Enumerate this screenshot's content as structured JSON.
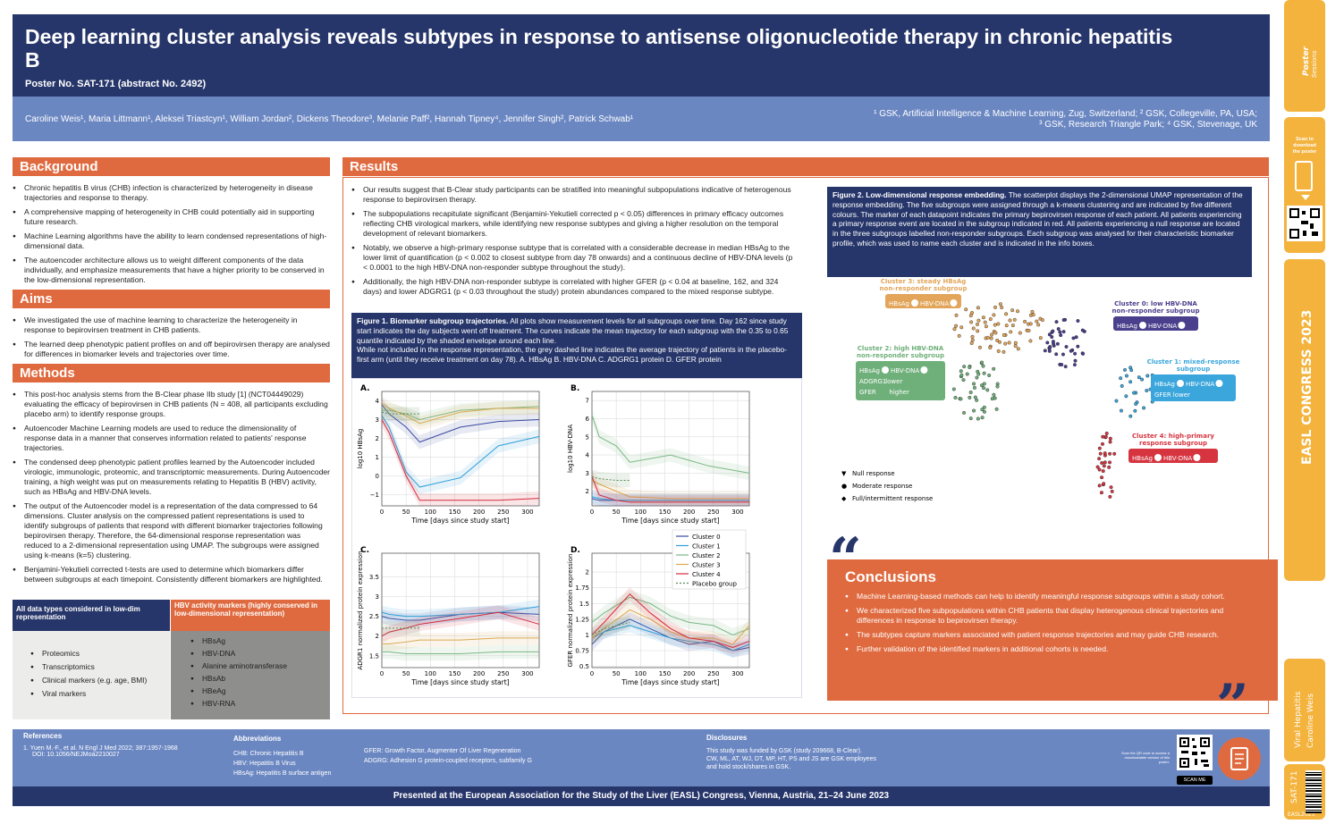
{
  "header": {
    "title": "Deep learning cluster analysis reveals subtypes in response to antisense oligonucleotide therapy in chronic hepatitis B",
    "poster_no": "Poster No. SAT-171 (abstract No. 2492)"
  },
  "authors": {
    "list": "Caroline Weis¹, Maria Littmann¹, Aleksei Triastcyn¹, William Jordan², Dickens Theodore³, Melanie Paff², Hannah Tipney⁴, Jennifer Singh², Patrick Schwab¹",
    "affil1": "¹ GSK, Artificial Intelligence & Machine Learning, Zug, Switzerland; ² GSK, Collegeville, PA, USA;",
    "affil2": "³ GSK, Research Triangle Park; ⁴ GSK, Stevenage, UK"
  },
  "background": {
    "title": "Background",
    "items": [
      "Chronic hepatitis B virus (CHB) infection is characterized by heterogeneity in disease trajectories and response to therapy.",
      "A comprehensive mapping of heterogeneity in CHB could potentially aid in supporting future research.",
      "Machine Learning algorithms have the ability to learn condensed representations of high-dimensional data.",
      "The autoencoder architecture allows us to weight different components of the data individually, and emphasize measurements that have a higher priority to be conserved in the low-dimensional representation."
    ]
  },
  "aims": {
    "title": "Aims",
    "items": [
      "We investigated the use of machine learning to characterize the heterogeneity in response to bepirovirsen treatment in CHB patients.",
      "The learned deep phenotypic patient profiles on and off bepirovirsen therapy are analysed for differences in biomarker levels and trajectories over time."
    ]
  },
  "methods": {
    "title": "Methods",
    "items": [
      "This post-hoc analysis stems from the B-Clear phase IIb study [1] (NCT04449029) evaluating the efficacy of bepirovirsen in CHB patients (N = 408, all participants excluding placebo arm) to identify response groups.",
      "Autoencoder Machine Learning models are used to reduce the dimensionality of response data in a manner that conserves information related to patients' response trajectories.",
      "The condensed deep phenotypic patient profiles learned by the Autoencoder included virologic, immunologic, proteomic, and transcriptomic measurements. During Autoencoder training, a high weight was put on measurements relating to Hepatitis B (HBV) activity, such as HBsAg and HBV-DNA levels.",
      "The output of the Autoencoder model is a representation of the data compressed to 64 dimensions. Cluster analysis on the compressed patient representations is used to identify subgroups of patients that respond with different biomarker trajectories following bepirovirsen therapy. Therefore, the 64-dimensional response representation was reduced to a 2-dimensional representation using UMAP. The subgroups were assigned using k-means (k=5) clustering.",
      "Benjamini-Yekutieli corrected t-tests are used to determine which biomarkers differ between subgroups at each timepoint. Consistently different biomarkers are highlighted."
    ]
  },
  "datatable": {
    "h1": "All data types considered in low-dim representation",
    "h2": "HBV activity markers (highly conserved in low-dimensional representation)",
    "col1": [
      "Proteomics",
      "Transcriptomics",
      "Clinical markers (e.g. age, BMI)",
      "Viral markers"
    ],
    "col2": [
      "HBsAg",
      "HBV-DNA",
      "Alanine aminotransferase",
      "HBsAb",
      "HBeAg",
      "HBV-RNA"
    ]
  },
  "results": {
    "title": "Results",
    "items": [
      "Our results suggest that B-Clear study participants can be stratified into meaningful subpopulations indicative of heterogenous response to bepirovirsen therapy.",
      "The subpopulations recapitulate significant (Benjamini-Yekutieli corrected p < 0.05) differences in primary efficacy outcomes reflecting CHB virological markers, while identifying new response subtypes and giving a higher resolution on the temporal development of relevant biomarkers.",
      "Notably, we observe a high-primary response subtype that is correlated with a considerable decrease in median HBsAg to the lower limit of quantification (p < 0.002 to closest subtype from day 78 onwards) and a continuous decline of HBV-DNA levels (p < 0.0001 to the high HBV-DNA non-responder subtype throughout the study).",
      "Additionally, the high HBV-DNA non-responder subtype is correlated with higher GFER (p < 0.04 at baseline, 162, and 324 days) and lower ADGRG1 (p < 0.03 throughout the study) protein abundances compared to the mixed response subtype."
    ]
  },
  "fig1": {
    "bold": "Figure 1. Biomarker subgroup trajectories.",
    "text": "All plots show measurement levels for all subgroups over time. Day 162 since study start indicates the day subjects went off treatment. The curves indicate the mean trajectory for each subgroup with the 0.35 to 0.65 quantile indicated by the shaded envelope around each line.",
    "text2": "While not included in the response representation, the grey dashed line indicates the average trajectory of patients in the placebo-first arm (until they receive treatment on day 78). A. HBsAg B. HBV-DNA C. ADGRG1 protein D. GFER protein"
  },
  "fig2": {
    "bold": "Figure 2. Low-dimensional response embedding.",
    "text": "The scatterplot displays the 2-dimensional UMAP representation of the response embedding. The five subgroups were assigned through a k-means clustering and are indicated by five different colours. The marker of each datapoint indicates the primary bepirovirsen response of each patient. All patients experiencing a primary response event are located in the subgroup indicated in red. All patients experiencing a null response are located in the three subgroups labelled non-responder subgroups. Each subgroup was analysed for their characteristic biomarker profile, which was used to name each cluster and is indicated in the info boxes."
  },
  "umap": {
    "c3": [
      "Cluster 3: steady HBsAg",
      "non-responder subgroup"
    ],
    "c0": [
      "Cluster 0: low HBV-DNA",
      "non-responder subgroup"
    ],
    "c2": [
      "Cluster 2: high HBV-DNA",
      "non-responder subgroup"
    ],
    "c1": [
      "Cluster 1: mixed-response",
      "subgroup"
    ],
    "c4": [
      "Cluster 4: high-primary",
      "response subgroup"
    ],
    "hbsag": "HBsAg",
    "hbvdna": "HBV-DNA",
    "adgrg1": "ADGRG1",
    "gfer": "GFER",
    "lower": "lower",
    "higher": "higher",
    "legend": [
      "Null response",
      "Moderate response",
      "Full/intermittent response"
    ],
    "colors": {
      "c0": "#4a3f8c",
      "c1": "#3aa6dc",
      "c2": "#6fb07a",
      "c3": "#e2a55a",
      "c4": "#d63540"
    }
  },
  "chart_data": [
    {
      "type": "line",
      "panel": "A.",
      "xlabel": "Time [days since study start]",
      "ylabel": "log10 HBsAg",
      "xlim": [
        0,
        324
      ],
      "ylim": [
        -1.6,
        4.5
      ],
      "xticks": [
        0,
        50,
        100,
        150,
        200,
        250,
        300
      ],
      "yticks": [
        -1,
        0,
        1,
        2,
        3,
        4
      ],
      "series": [
        {
          "name": "Cluster 0",
          "x": [
            0,
            15,
            50,
            78,
            162,
            240,
            324
          ],
          "values": [
            3.8,
            3.3,
            2.6,
            1.8,
            2.6,
            2.9,
            3.0
          ]
        },
        {
          "name": "Cluster 1",
          "x": [
            0,
            15,
            50,
            78,
            162,
            240,
            324
          ],
          "values": [
            3.2,
            2.6,
            0.2,
            -0.6,
            -0.1,
            1.6,
            2.1
          ]
        },
        {
          "name": "Cluster 2",
          "x": [
            0,
            15,
            50,
            78,
            162,
            240,
            324
          ],
          "values": [
            3.5,
            3.5,
            3.3,
            3.0,
            3.5,
            3.6,
            3.7
          ]
        },
        {
          "name": "Cluster 3",
          "x": [
            0,
            15,
            50,
            78,
            162,
            240,
            324
          ],
          "values": [
            3.9,
            3.6,
            3.2,
            2.8,
            3.4,
            3.6,
            3.6
          ]
        },
        {
          "name": "Cluster 4",
          "x": [
            0,
            15,
            50,
            78,
            162,
            240,
            324
          ],
          "values": [
            3.0,
            2.3,
            0.0,
            -1.3,
            -1.3,
            -1.3,
            -1.2
          ]
        },
        {
          "name": "Placebo group",
          "x": [
            0,
            15,
            50,
            78
          ],
          "values": [
            3.4,
            3.3,
            3.3,
            3.3
          ]
        }
      ]
    },
    {
      "type": "line",
      "panel": "B.",
      "xlabel": "Time [days since study start]",
      "ylabel": "log10 HBV-DNA",
      "xlim": [
        0,
        324
      ],
      "ylim": [
        1.2,
        7.5
      ],
      "xticks": [
        0,
        50,
        100,
        150,
        200,
        250,
        300
      ],
      "yticks": [
        2,
        3,
        4,
        5,
        6,
        7
      ],
      "series": [
        {
          "name": "Cluster 0",
          "x": [
            0,
            15,
            50,
            78,
            162,
            240,
            324
          ],
          "values": [
            1.6,
            1.5,
            1.5,
            1.5,
            1.5,
            1.5,
            1.5
          ]
        },
        {
          "name": "Cluster 1",
          "x": [
            0,
            15,
            50,
            78,
            162,
            240,
            324
          ],
          "values": [
            1.7,
            1.6,
            1.5,
            1.5,
            1.5,
            1.5,
            1.5
          ]
        },
        {
          "name": "Cluster 2",
          "x": [
            0,
            15,
            50,
            78,
            162,
            240,
            324
          ],
          "values": [
            6.2,
            5.0,
            4.5,
            3.6,
            4.0,
            3.4,
            3.0
          ]
        },
        {
          "name": "Cluster 3",
          "x": [
            0,
            15,
            50,
            78,
            162,
            240,
            324
          ],
          "values": [
            2.6,
            2.4,
            2.0,
            1.7,
            1.6,
            1.6,
            1.6
          ]
        },
        {
          "name": "Cluster 4",
          "x": [
            0,
            15,
            50,
            78,
            162,
            240,
            324
          ],
          "values": [
            2.8,
            1.8,
            1.5,
            1.4,
            1.4,
            1.4,
            1.4
          ]
        },
        {
          "name": "Placebo group",
          "x": [
            0,
            15,
            50,
            78
          ],
          "values": [
            2.8,
            2.7,
            2.6,
            2.6
          ]
        }
      ]
    },
    {
      "type": "line",
      "panel": "C.",
      "xlabel": "Time [days since study start]",
      "ylabel": "ADGR1 normalized protein expression",
      "xlim": [
        0,
        324
      ],
      "ylim": [
        1.2,
        4.1
      ],
      "xticks": [
        0,
        50,
        100,
        150,
        200,
        250,
        300
      ],
      "yticks": [
        1.5,
        2.0,
        2.5,
        3.0,
        3.5
      ],
      "series": [
        {
          "name": "Cluster 0",
          "x": [
            0,
            15,
            50,
            78,
            162,
            240,
            324
          ],
          "values": [
            2.5,
            2.45,
            2.4,
            2.4,
            2.55,
            2.6,
            2.55
          ]
        },
        {
          "name": "Cluster 1",
          "x": [
            0,
            15,
            50,
            78,
            162,
            240,
            324
          ],
          "values": [
            2.6,
            2.55,
            2.5,
            2.5,
            2.55,
            2.6,
            2.75
          ]
        },
        {
          "name": "Cluster 2",
          "x": [
            0,
            15,
            50,
            78,
            162,
            240,
            324
          ],
          "values": [
            1.6,
            1.6,
            1.55,
            1.55,
            1.55,
            1.6,
            1.6
          ]
        },
        {
          "name": "Cluster 3",
          "x": [
            0,
            15,
            50,
            78,
            162,
            240,
            324
          ],
          "values": [
            1.8,
            1.8,
            1.85,
            1.9,
            1.9,
            1.95,
            1.95
          ]
        },
        {
          "name": "Cluster 4",
          "x": [
            0,
            15,
            50,
            78,
            162,
            240,
            324
          ],
          "values": [
            2.0,
            2.1,
            2.2,
            2.3,
            2.45,
            2.6,
            2.3
          ]
        },
        {
          "name": "Placebo group",
          "x": [
            0,
            15,
            50,
            78
          ],
          "values": [
            2.2,
            2.2,
            2.2,
            2.2
          ]
        }
      ]
    },
    {
      "type": "line",
      "panel": "D.",
      "xlabel": "Time [days since study start]",
      "ylabel": "GFER normalized protein expression",
      "xlim": [
        0,
        324
      ],
      "ylim": [
        0.48,
        2.3
      ],
      "xticks": [
        0,
        50,
        100,
        150,
        200,
        250,
        300
      ],
      "yticks": [
        0.5,
        0.75,
        1.0,
        1.25,
        1.5,
        1.75,
        2.0
      ],
      "series": [
        {
          "name": "Cluster 0",
          "x": [
            0,
            25,
            78,
            120,
            162,
            200,
            250,
            290,
            324
          ],
          "values": [
            0.85,
            1.05,
            1.25,
            1.1,
            0.95,
            0.85,
            0.9,
            0.75,
            0.8
          ]
        },
        {
          "name": "Cluster 1",
          "x": [
            0,
            25,
            78,
            120,
            162,
            200,
            250,
            290,
            324
          ],
          "values": [
            0.95,
            1.05,
            1.15,
            1.05,
            0.95,
            0.9,
            0.85,
            0.75,
            0.85
          ]
        },
        {
          "name": "Cluster 2",
          "x": [
            0,
            25,
            78,
            120,
            162,
            200,
            250,
            290,
            324
          ],
          "values": [
            1.2,
            1.35,
            1.6,
            1.5,
            1.3,
            1.2,
            1.15,
            1.0,
            1.1
          ]
        },
        {
          "name": "Cluster 3",
          "x": [
            0,
            25,
            78,
            120,
            162,
            200,
            250,
            290,
            324
          ],
          "values": [
            0.95,
            1.1,
            1.4,
            1.25,
            1.05,
            0.95,
            0.95,
            0.85,
            1.15
          ]
        },
        {
          "name": "Cluster 4",
          "x": [
            0,
            25,
            78,
            120,
            162,
            200,
            250,
            290,
            324
          ],
          "values": [
            1.0,
            1.2,
            1.65,
            1.35,
            1.1,
            0.95,
            0.9,
            0.8,
            0.9
          ]
        },
        {
          "name": "Placebo group",
          "x": [
            0,
            25,
            78
          ],
          "values": [
            1.0,
            1.1,
            1.2
          ]
        }
      ],
      "legend": "top-right"
    }
  ],
  "conclusions": {
    "title": "Conclusions",
    "items": [
      "Machine Learning-based methods can help to identify meaningful response subgroups within a study cohort.",
      "We characterized five subpopulations within CHB patients that display heterogenous clinical trajectories and differences in response to bepirovirsen therapy.",
      "The subtypes capture markers associated with patient response trajectories and may guide CHB research.",
      "Further validation of the identified markers in additional cohorts is needed."
    ]
  },
  "footer": {
    "refs_title": "References",
    "ref1": "1.  Yuen M.-F., et al. N Engl J Med 2022; 387:1957-1968",
    "ref1b": "DOI: 10.1056/NEJMoa2210027",
    "abbr_title": "Abbreviations",
    "abbr": [
      "CHB: Chronic Hepatitis B",
      "HBV: Hepatitis B Virus",
      "HBsAg: Hepatitis B surface antigen"
    ],
    "abbr2": [
      "GFER: Growth Factor, Augmenter Of Liver Regeneration",
      "ADGRG: Adhesion G protein-coupled receptors, subfamily G"
    ],
    "disc_title": "Disclosures",
    "disc": [
      "This study was funded by GSK (study 209668, B-Clear).",
      "CW, ML, AT, WJ, DT, MP, HT, PS and JS are GSK employees and hold stock/shares in GSK."
    ],
    "scan_text": "Scan the QR code to access a downloadable version of this poster.",
    "scan_me": "SCAN ME",
    "presented": "Presented at the European Association for the Study of the Liver (EASL) Congress, Vienna, Austria, 21–24 June 2023"
  },
  "side": {
    "scan": "Scan to download the poster",
    "congress": "EASL CONGRESS 2023",
    "topic": "Viral Hepatitis",
    "author": "Caroline Weis",
    "code": "SAT-171",
    "easl": "EASL2023"
  }
}
